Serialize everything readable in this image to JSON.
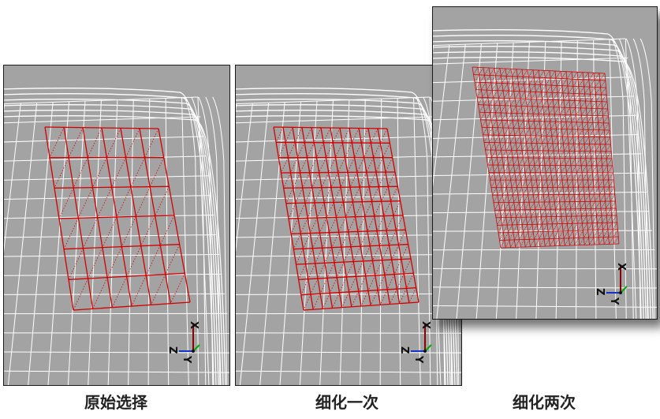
{
  "panels": [
    {
      "caption": "原始选择",
      "subdivision": 6
    },
    {
      "caption": "细化一次",
      "subdivision": 12
    },
    {
      "caption": "细化两次",
      "subdivision": 24
    }
  ],
  "gizmo": {
    "x_label": "X",
    "y_label": "Y",
    "z_label": "Z"
  },
  "colors": {
    "background": "#a3a3a3",
    "wireframe": "#ffffff",
    "selection": "#d40000"
  }
}
